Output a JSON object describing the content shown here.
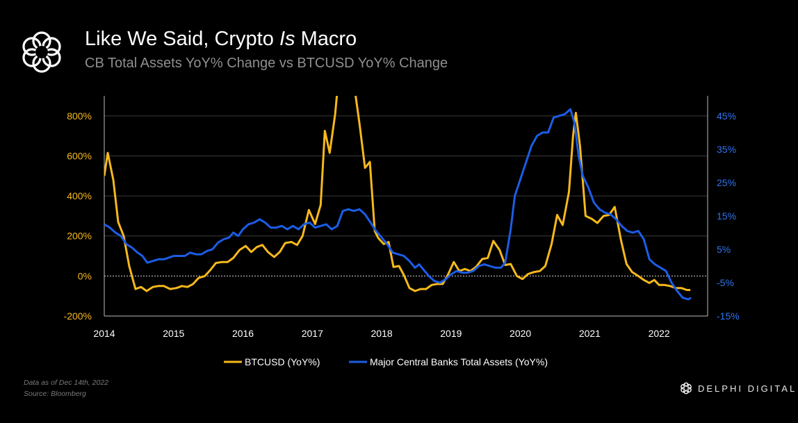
{
  "header": {
    "title_main": "Like We Said, Crypto",
    "title_italic": "Is",
    "title_end": "Macro",
    "subtitle": "CB Total Assets YoY% Change vs BTCUSD YoY% Change"
  },
  "footer": {
    "note1": "Data as of Dec 14th, 2022",
    "note2": "Source: Bloomberg",
    "brand": "DELPHI DIGITAL"
  },
  "colors": {
    "btc": "#f7b91c",
    "cb": "#1c5de6",
    "left_axis": "#f7b91c",
    "right_axis": "#2f74f0",
    "background": "#000000"
  },
  "icons": {
    "header_logo": "delphi-knot-logo",
    "brand_logo": "delphi-knot-logo"
  },
  "chart_data": {
    "type": "line",
    "x_axis": {
      "ticks": [
        2014,
        2015,
        2016,
        2017,
        2018,
        2019,
        2020,
        2021,
        2022
      ],
      "range": [
        2014,
        2022.7
      ]
    },
    "y_left": {
      "ticks": [
        -200,
        0,
        200,
        400,
        600,
        800
      ],
      "tick_labels": [
        "-200%",
        "0%",
        "200%",
        "400%",
        "600%",
        "800%"
      ],
      "range": [
        -200,
        900
      ]
    },
    "y_right": {
      "ticks": [
        -15,
        -5,
        5,
        15,
        25,
        35,
        45
      ],
      "tick_labels": [
        "-15%",
        "-5%",
        "5%",
        "15%",
        "25%",
        "35%",
        "45%"
      ],
      "range": [
        -15,
        51
      ]
    },
    "zero_line": true,
    "legend_position": "bottom-center",
    "series": [
      {
        "name": "BTCUSD (YoY%)",
        "axis": "left",
        "points": [
          [
            2014.0,
            500
          ],
          [
            2014.05,
            615
          ],
          [
            2014.13,
            480
          ],
          [
            2014.2,
            270
          ],
          [
            2014.28,
            200
          ],
          [
            2014.36,
            50
          ],
          [
            2014.45,
            -65
          ],
          [
            2014.53,
            -55
          ],
          [
            2014.61,
            -75
          ],
          [
            2014.7,
            -55
          ],
          [
            2014.78,
            -50
          ],
          [
            2014.86,
            -50
          ],
          [
            2014.95,
            -65
          ],
          [
            2015.04,
            -60
          ],
          [
            2015.12,
            -50
          ],
          [
            2015.2,
            -55
          ],
          [
            2015.28,
            -40
          ],
          [
            2015.36,
            -10
          ],
          [
            2015.45,
            0
          ],
          [
            2015.53,
            30
          ],
          [
            2015.61,
            65
          ],
          [
            2015.7,
            70
          ],
          [
            2015.78,
            70
          ],
          [
            2015.86,
            90
          ],
          [
            2015.95,
            130
          ],
          [
            2016.04,
            150
          ],
          [
            2016.12,
            120
          ],
          [
            2016.2,
            145
          ],
          [
            2016.28,
            155
          ],
          [
            2016.36,
            120
          ],
          [
            2016.45,
            95
          ],
          [
            2016.53,
            120
          ],
          [
            2016.61,
            165
          ],
          [
            2016.7,
            170
          ],
          [
            2016.78,
            155
          ],
          [
            2016.86,
            200
          ],
          [
            2016.95,
            330
          ],
          [
            2017.04,
            260
          ],
          [
            2017.12,
            355
          ],
          [
            2017.18,
            725
          ],
          [
            2017.25,
            615
          ],
          [
            2017.33,
            810
          ],
          [
            2017.38,
            1000
          ],
          [
            2017.5,
            1100
          ],
          [
            2017.6,
            960
          ],
          [
            2017.68,
            760
          ],
          [
            2017.76,
            540
          ],
          [
            2017.83,
            570
          ],
          [
            2017.9,
            225
          ],
          [
            2017.95,
            190
          ],
          [
            2018.03,
            160
          ],
          [
            2018.1,
            170
          ],
          [
            2018.17,
            45
          ],
          [
            2018.25,
            50
          ],
          [
            2018.32,
            5
          ],
          [
            2018.4,
            -60
          ],
          [
            2018.48,
            -75
          ],
          [
            2018.56,
            -65
          ],
          [
            2018.64,
            -65
          ],
          [
            2018.72,
            -45
          ],
          [
            2018.8,
            -40
          ],
          [
            2018.88,
            -40
          ],
          [
            2018.96,
            10
          ],
          [
            2019.04,
            70
          ],
          [
            2019.12,
            25
          ],
          [
            2019.2,
            35
          ],
          [
            2019.28,
            25
          ],
          [
            2019.36,
            45
          ],
          [
            2019.45,
            85
          ],
          [
            2019.53,
            90
          ],
          [
            2019.61,
            175
          ],
          [
            2019.7,
            130
          ],
          [
            2019.78,
            55
          ],
          [
            2019.86,
            60
          ],
          [
            2019.95,
            0
          ],
          [
            2020.03,
            -15
          ],
          [
            2020.11,
            10
          ],
          [
            2020.2,
            20
          ],
          [
            2020.28,
            25
          ],
          [
            2020.36,
            50
          ],
          [
            2020.45,
            160
          ],
          [
            2020.53,
            305
          ],
          [
            2020.61,
            255
          ],
          [
            2020.7,
            420
          ],
          [
            2020.76,
            700
          ],
          [
            2020.8,
            815
          ],
          [
            2020.86,
            650
          ],
          [
            2020.94,
            300
          ],
          [
            2021.03,
            285
          ],
          [
            2021.11,
            265
          ],
          [
            2021.2,
            300
          ],
          [
            2021.28,
            305
          ],
          [
            2021.36,
            345
          ],
          [
            2021.45,
            180
          ],
          [
            2021.53,
            60
          ],
          [
            2021.61,
            20
          ],
          [
            2021.7,
            0
          ],
          [
            2021.78,
            -20
          ],
          [
            2021.86,
            -35
          ],
          [
            2021.93,
            -20
          ],
          [
            2022.0,
            -45
          ],
          [
            2022.08,
            -45
          ],
          [
            2022.16,
            -50
          ],
          [
            2022.24,
            -60
          ],
          [
            2022.32,
            -60
          ],
          [
            2022.4,
            -70
          ],
          [
            2022.45,
            -70
          ]
        ]
      },
      {
        "name": "Major Central Banks Total Assets (YoY%)",
        "axis": "right",
        "points": [
          [
            2014.0,
            12.5
          ],
          [
            2014.08,
            11.5
          ],
          [
            2014.16,
            10
          ],
          [
            2014.24,
            9
          ],
          [
            2014.32,
            6.5
          ],
          [
            2014.4,
            5.5
          ],
          [
            2014.48,
            4
          ],
          [
            2014.55,
            3
          ],
          [
            2014.62,
            1
          ],
          [
            2014.7,
            1.5
          ],
          [
            2014.78,
            2
          ],
          [
            2014.86,
            2
          ],
          [
            2014.93,
            2.5
          ],
          [
            2015.0,
            3
          ],
          [
            2015.08,
            3
          ],
          [
            2015.16,
            3
          ],
          [
            2015.24,
            4
          ],
          [
            2015.32,
            3.5
          ],
          [
            2015.4,
            3.5
          ],
          [
            2015.48,
            4.5
          ],
          [
            2015.56,
            5
          ],
          [
            2015.64,
            7
          ],
          [
            2015.72,
            8
          ],
          [
            2015.8,
            8.5
          ],
          [
            2015.86,
            10
          ],
          [
            2015.93,
            9
          ],
          [
            2016.0,
            11
          ],
          [
            2016.08,
            12.5
          ],
          [
            2016.16,
            13
          ],
          [
            2016.24,
            14
          ],
          [
            2016.32,
            13
          ],
          [
            2016.4,
            11.5
          ],
          [
            2016.48,
            11.5
          ],
          [
            2016.56,
            12
          ],
          [
            2016.64,
            11
          ],
          [
            2016.72,
            12
          ],
          [
            2016.8,
            11
          ],
          [
            2016.88,
            12.5
          ],
          [
            2016.96,
            13
          ],
          [
            2017.04,
            11.5
          ],
          [
            2017.12,
            12
          ],
          [
            2017.2,
            12.5
          ],
          [
            2017.28,
            11
          ],
          [
            2017.36,
            12
          ],
          [
            2017.44,
            16.5
          ],
          [
            2017.52,
            17
          ],
          [
            2017.6,
            16.5
          ],
          [
            2017.68,
            17
          ],
          [
            2017.76,
            15.5
          ],
          [
            2017.84,
            13
          ],
          [
            2017.92,
            10.5
          ],
          [
            2018.0,
            8.5
          ],
          [
            2018.08,
            6.5
          ],
          [
            2018.16,
            4
          ],
          [
            2018.24,
            3.5
          ],
          [
            2018.32,
            3
          ],
          [
            2018.4,
            1.5
          ],
          [
            2018.48,
            -0.5
          ],
          [
            2018.54,
            0.5
          ],
          [
            2018.6,
            -1
          ],
          [
            2018.68,
            -3
          ],
          [
            2018.76,
            -4.5
          ],
          [
            2018.84,
            -5
          ],
          [
            2018.92,
            -4
          ],
          [
            2019.0,
            -2.5
          ],
          [
            2019.08,
            -1.5
          ],
          [
            2019.16,
            -2
          ],
          [
            2019.24,
            -2
          ],
          [
            2019.32,
            -1.5
          ],
          [
            2019.4,
            0
          ],
          [
            2019.48,
            0.5
          ],
          [
            2019.56,
            0
          ],
          [
            2019.64,
            -0.5
          ],
          [
            2019.72,
            -0.5
          ],
          [
            2019.78,
            1
          ],
          [
            2019.86,
            11
          ],
          [
            2019.92,
            21
          ],
          [
            2020.0,
            26
          ],
          [
            2020.08,
            31
          ],
          [
            2020.16,
            36
          ],
          [
            2020.24,
            39
          ],
          [
            2020.32,
            40
          ],
          [
            2020.4,
            40
          ],
          [
            2020.48,
            44.5
          ],
          [
            2020.56,
            45
          ],
          [
            2020.64,
            45.5
          ],
          [
            2020.72,
            47
          ],
          [
            2020.78,
            43
          ],
          [
            2020.84,
            33
          ],
          [
            2020.9,
            27
          ],
          [
            2020.98,
            23.5
          ],
          [
            2021.06,
            19
          ],
          [
            2021.14,
            17
          ],
          [
            2021.22,
            16
          ],
          [
            2021.3,
            15.5
          ],
          [
            2021.38,
            14
          ],
          [
            2021.46,
            12
          ],
          [
            2021.54,
            10.5
          ],
          [
            2021.62,
            10
          ],
          [
            2021.7,
            10.5
          ],
          [
            2021.78,
            8
          ],
          [
            2021.86,
            2
          ],
          [
            2021.94,
            0.5
          ],
          [
            2022.02,
            -0.5
          ],
          [
            2022.1,
            -1.5
          ],
          [
            2022.18,
            -5
          ],
          [
            2022.26,
            -7.5
          ],
          [
            2022.34,
            -9.5
          ],
          [
            2022.42,
            -10
          ],
          [
            2022.46,
            -9.5
          ]
        ]
      }
    ]
  }
}
